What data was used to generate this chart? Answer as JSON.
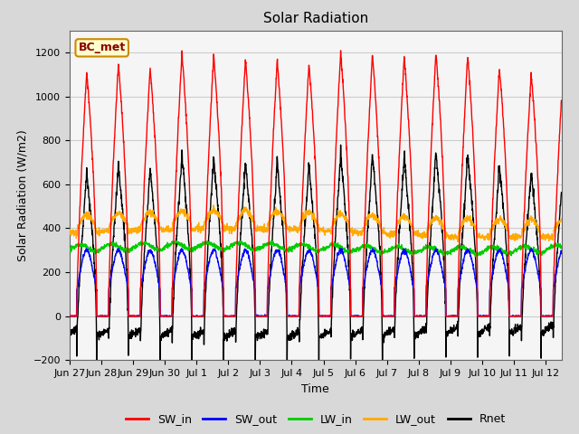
{
  "title": "Solar Radiation",
  "xlabel": "Time",
  "ylabel": "Solar Radiation (W/m2)",
  "ylim": [
    -200,
    1300
  ],
  "yticks": [
    -200,
    0,
    200,
    400,
    600,
    800,
    1000,
    1200
  ],
  "colors": {
    "SW_in": "#ff0000",
    "SW_out": "#0000ff",
    "LW_in": "#00cc00",
    "LW_out": "#ffaa00",
    "Rnet": "#000000"
  },
  "annotation_text": "BC_met",
  "annotation_box_color": "#ffffcc",
  "annotation_box_edge": "#cc8800",
  "xtick_labels": [
    "Jun 27",
    "Jun 28",
    "Jun 29",
    "Jun 30",
    "Jul 1",
    "Jul 2",
    "Jul 3",
    "Jul 4",
    "Jul 5",
    "Jul 6",
    "Jul 7",
    "Jul 8",
    "Jul 9",
    "Jul 10",
    "Jul 11",
    "Jul 12"
  ],
  "linewidth": 1.0,
  "num_days": 15.5
}
